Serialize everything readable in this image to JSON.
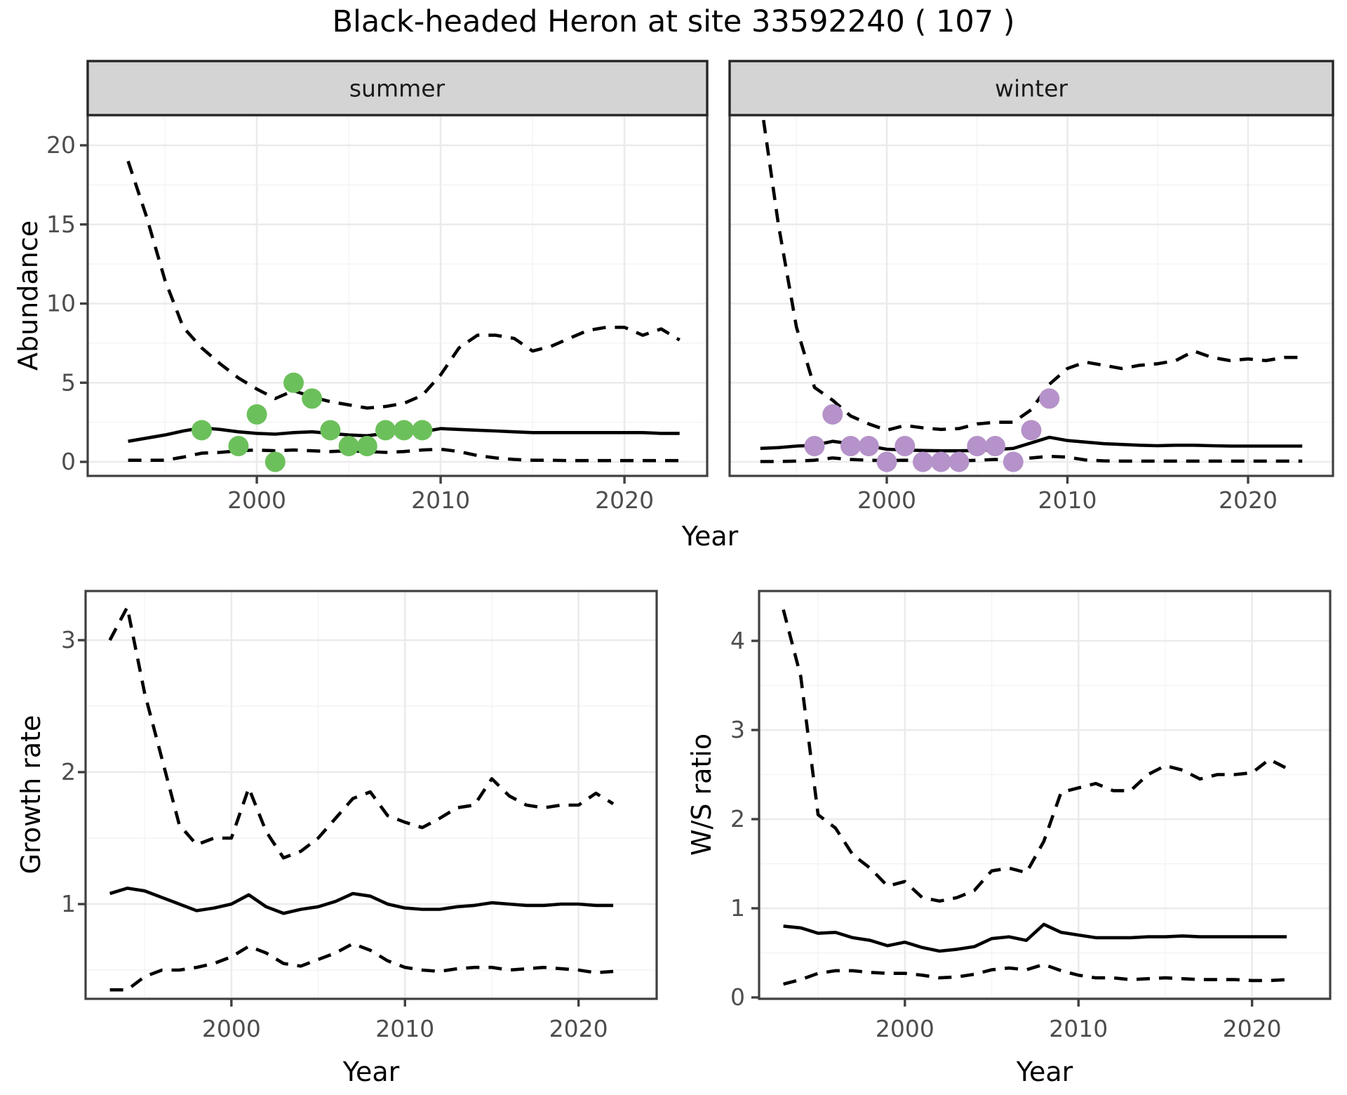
{
  "title": "Black-headed Heron at site 33592240 ( 107 )",
  "colors": {
    "summer_points": "#6cc05b",
    "winter_points": "#b592c9",
    "line": "#000000",
    "grid_major": "#ebebeb",
    "grid_minor": "#f4f4f4",
    "panel_border": "#404040",
    "strip_background": "#d4d4d4",
    "strip_border": "#262626",
    "tick_text": "#4d4d4d",
    "background": "#ffffff"
  },
  "chart_data": [
    {
      "id": "abundance-summer",
      "type": "line",
      "facet": "summer",
      "xlabel": "Year",
      "ylabel": "Abundance",
      "xlim": [
        1990.8,
        2024.5
      ],
      "ylim": [
        -0.85,
        21.9
      ],
      "x_ticks": [
        2000,
        2010,
        2020
      ],
      "x_minor": [
        1995,
        2005,
        2015
      ],
      "y_ticks": [
        0,
        5,
        10,
        15,
        20
      ],
      "y_minor": [
        2.5,
        7.5,
        12.5,
        17.5
      ],
      "grid": true,
      "legend": "none",
      "years": [
        1993,
        1994,
        1995,
        1996,
        1997,
        1998,
        1999,
        2000,
        2001,
        2002,
        2003,
        2004,
        2005,
        2006,
        2007,
        2008,
        2009,
        2010,
        2011,
        2012,
        2013,
        2014,
        2015,
        2016,
        2017,
        2018,
        2019,
        2020,
        2021,
        2022,
        2023
      ],
      "series": [
        {
          "name": "median",
          "style": "solid",
          "values": [
            1.3,
            1.5,
            1.7,
            1.95,
            2.15,
            2.05,
            1.9,
            1.8,
            1.75,
            1.85,
            1.9,
            1.8,
            1.7,
            1.65,
            1.8,
            1.85,
            1.9,
            2.1,
            2.05,
            2.0,
            1.95,
            1.9,
            1.85,
            1.85,
            1.85,
            1.85,
            1.85,
            1.85,
            1.85,
            1.8,
            1.8
          ]
        },
        {
          "name": "upper_ci",
          "style": "dashed",
          "values": [
            19,
            15.5,
            11.5,
            8.5,
            7.2,
            6.2,
            5.3,
            4.6,
            4.0,
            4.5,
            4.1,
            3.8,
            3.6,
            3.4,
            3.5,
            3.7,
            4.2,
            5.5,
            7.2,
            8.0,
            8.0,
            7.8,
            7.0,
            7.3,
            7.8,
            8.3,
            8.5,
            8.5,
            8.0,
            8.4,
            7.7
          ]
        },
        {
          "name": "lower_ci",
          "style": "dashed",
          "values": [
            0.1,
            0.1,
            0.1,
            0.3,
            0.55,
            0.6,
            0.7,
            0.75,
            0.7,
            0.75,
            0.7,
            0.65,
            0.7,
            0.65,
            0.6,
            0.65,
            0.75,
            0.8,
            0.65,
            0.4,
            0.25,
            0.15,
            0.1,
            0.1,
            0.08,
            0.08,
            0.08,
            0.08,
            0.08,
            0.08,
            0.08
          ]
        }
      ],
      "points": {
        "name": "observed-counts-summer",
        "color": "#6cc05b",
        "x": [
          1997,
          1999,
          2000,
          2001,
          2002,
          2003,
          2004,
          2005,
          2006,
          2007,
          2008,
          2009
        ],
        "y": [
          2,
          1,
          3,
          0,
          5,
          4,
          2,
          1,
          1,
          2,
          2,
          2
        ]
      }
    },
    {
      "id": "abundance-winter",
      "type": "line",
      "facet": "winter",
      "xlabel": "Year",
      "ylabel": "Abundance",
      "xlim": [
        1991.3,
        2024.7
      ],
      "ylim": [
        -0.85,
        21.9
      ],
      "x_ticks": [
        2000,
        2010,
        2020
      ],
      "x_minor": [
        1995,
        2005,
        2015
      ],
      "y_ticks": [
        0,
        5,
        10,
        15,
        20
      ],
      "y_minor": [
        2.5,
        7.5,
        12.5,
        17.5
      ],
      "grid": true,
      "legend": "none",
      "years": [
        1993,
        1994,
        1995,
        1996,
        1997,
        1998,
        1999,
        2000,
        2001,
        2002,
        2003,
        2004,
        2005,
        2006,
        2007,
        2008,
        2009,
        2010,
        2011,
        2012,
        2013,
        2014,
        2015,
        2016,
        2017,
        2018,
        2019,
        2020,
        2021,
        2022,
        2023
      ],
      "series": [
        {
          "name": "median",
          "style": "solid",
          "values": [
            0.85,
            0.9,
            1.0,
            1.05,
            1.3,
            1.15,
            1.0,
            0.8,
            0.75,
            0.72,
            0.7,
            0.7,
            0.72,
            0.78,
            0.85,
            1.2,
            1.55,
            1.35,
            1.25,
            1.15,
            1.1,
            1.05,
            1.02,
            1.05,
            1.05,
            1.02,
            1.0,
            1.0,
            1.0,
            1.0,
            1.0
          ]
        },
        {
          "name": "upper_ci",
          "style": "dashed",
          "values": [
            23,
            15,
            8.5,
            4.7,
            3.9,
            2.9,
            2.4,
            2.0,
            2.3,
            2.15,
            2.05,
            2.1,
            2.4,
            2.5,
            2.5,
            3.3,
            4.9,
            5.9,
            6.3,
            6.1,
            5.9,
            6.1,
            6.2,
            6.4,
            7.0,
            6.6,
            6.4,
            6.5,
            6.4,
            6.6,
            6.6
          ]
        },
        {
          "name": "lower_ci",
          "style": "dashed",
          "values": [
            0.02,
            0.02,
            0.05,
            0.1,
            0.25,
            0.15,
            0.1,
            0.08,
            0.1,
            0.08,
            0.06,
            0.06,
            0.1,
            0.15,
            0.12,
            0.25,
            0.35,
            0.3,
            0.12,
            0.06,
            0.05,
            0.05,
            0.05,
            0.05,
            0.05,
            0.05,
            0.05,
            0.05,
            0.05,
            0.05,
            0.05
          ]
        }
      ],
      "points": {
        "name": "observed-counts-winter",
        "color": "#b592c9",
        "x": [
          1996,
          1997,
          1998,
          1999,
          2000,
          2001,
          2002,
          2003,
          2004,
          2005,
          2006,
          2007,
          2008,
          2009
        ],
        "y": [
          1,
          3,
          1,
          1,
          0,
          1,
          0,
          0,
          0,
          1,
          1,
          0,
          2,
          4
        ]
      }
    },
    {
      "id": "growth-rate",
      "type": "line",
      "facet": null,
      "xlabel": "Year",
      "ylabel": "Growth rate",
      "xlim": [
        1991.6,
        2024.5
      ],
      "ylim": [
        0.28,
        3.36
      ],
      "x_ticks": [
        2000,
        2010,
        2020
      ],
      "x_minor": [
        1995,
        2005,
        2015
      ],
      "y_ticks": [
        1,
        2,
        3
      ],
      "y_minor": [
        0.5,
        1.5,
        2.5
      ],
      "grid": true,
      "legend": "none",
      "years": [
        1993,
        1994,
        1995,
        1996,
        1997,
        1998,
        1999,
        2000,
        2001,
        2002,
        2003,
        2004,
        2005,
        2006,
        2007,
        2008,
        2009,
        2010,
        2011,
        2012,
        2013,
        2014,
        2015,
        2016,
        2017,
        2018,
        2019,
        2020,
        2021,
        2022
      ],
      "series": [
        {
          "name": "median",
          "style": "solid",
          "values": [
            1.08,
            1.12,
            1.1,
            1.05,
            1.0,
            0.95,
            0.97,
            1.0,
            1.07,
            0.98,
            0.93,
            0.96,
            0.98,
            1.02,
            1.08,
            1.06,
            1.0,
            0.97,
            0.96,
            0.96,
            0.98,
            0.99,
            1.01,
            1.0,
            0.99,
            0.99,
            1.0,
            1.0,
            0.99,
            0.99
          ]
        },
        {
          "name": "upper_ci",
          "style": "dashed",
          "values": [
            3.0,
            3.25,
            2.6,
            2.1,
            1.6,
            1.45,
            1.5,
            1.5,
            1.88,
            1.55,
            1.35,
            1.4,
            1.5,
            1.65,
            1.8,
            1.85,
            1.67,
            1.62,
            1.58,
            1.65,
            1.73,
            1.75,
            1.95,
            1.82,
            1.75,
            1.73,
            1.75,
            1.75,
            1.84,
            1.76
          ]
        },
        {
          "name": "lower_ci",
          "style": "dashed",
          "values": [
            0.35,
            0.35,
            0.45,
            0.5,
            0.5,
            0.52,
            0.55,
            0.6,
            0.68,
            0.63,
            0.55,
            0.53,
            0.58,
            0.63,
            0.7,
            0.65,
            0.57,
            0.52,
            0.5,
            0.49,
            0.51,
            0.52,
            0.52,
            0.5,
            0.51,
            0.52,
            0.51,
            0.5,
            0.48,
            0.49
          ]
        }
      ]
    },
    {
      "id": "ws-ratio",
      "type": "line",
      "facet": null,
      "xlabel": "Year",
      "ylabel": "W/S ratio",
      "xlim": [
        1991.6,
        2024.5
      ],
      "ylim": [
        -0.02,
        4.56
      ],
      "x_ticks": [
        2000,
        2010,
        2020
      ],
      "x_minor": [
        1995,
        2005,
        2015
      ],
      "y_ticks": [
        0,
        1,
        2,
        3,
        4
      ],
      "y_minor": [
        0.5,
        1.5,
        2.5,
        3.5
      ],
      "grid": true,
      "legend": "none",
      "years": [
        1993,
        1994,
        1995,
        1996,
        1997,
        1998,
        1999,
        2000,
        2001,
        2002,
        2003,
        2004,
        2005,
        2006,
        2007,
        2008,
        2009,
        2010,
        2011,
        2012,
        2013,
        2014,
        2015,
        2016,
        2017,
        2018,
        2019,
        2020,
        2021,
        2022
      ],
      "series": [
        {
          "name": "median",
          "style": "solid",
          "values": [
            0.8,
            0.78,
            0.72,
            0.73,
            0.67,
            0.64,
            0.58,
            0.62,
            0.56,
            0.52,
            0.54,
            0.57,
            0.66,
            0.68,
            0.64,
            0.82,
            0.73,
            0.7,
            0.67,
            0.67,
            0.67,
            0.68,
            0.68,
            0.69,
            0.68,
            0.68,
            0.68,
            0.68,
            0.68,
            0.68
          ]
        },
        {
          "name": "upper_ci",
          "style": "dashed",
          "values": [
            4.35,
            3.6,
            2.05,
            1.9,
            1.6,
            1.45,
            1.25,
            1.3,
            1.12,
            1.08,
            1.12,
            1.2,
            1.42,
            1.45,
            1.4,
            1.75,
            2.3,
            2.35,
            2.4,
            2.32,
            2.32,
            2.5,
            2.6,
            2.55,
            2.45,
            2.5,
            2.5,
            2.52,
            2.67,
            2.57
          ]
        },
        {
          "name": "lower_ci",
          "style": "dashed",
          "values": [
            0.15,
            0.2,
            0.27,
            0.3,
            0.3,
            0.28,
            0.27,
            0.27,
            0.25,
            0.22,
            0.23,
            0.26,
            0.31,
            0.33,
            0.31,
            0.37,
            0.3,
            0.25,
            0.22,
            0.22,
            0.2,
            0.21,
            0.22,
            0.21,
            0.2,
            0.2,
            0.2,
            0.19,
            0.19,
            0.2
          ]
        }
      ]
    }
  ]
}
